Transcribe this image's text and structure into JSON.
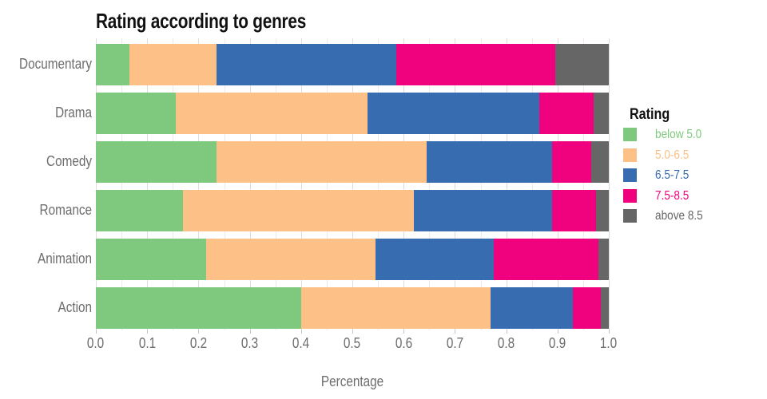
{
  "title": "Rating according to genres",
  "x_axis_label": "Percentage",
  "legend": {
    "title": "Rating",
    "items": [
      {
        "label": "below 5.0",
        "color": "#7fc97f"
      },
      {
        "label": "5.0-6.5",
        "color": "#fdc086"
      },
      {
        "label": "6.5-7.5",
        "color": "#386cb0"
      },
      {
        "label": "7.5-8.5",
        "color": "#f0027f"
      },
      {
        "label": "above 8.5",
        "color": "#666666"
      }
    ]
  },
  "chart_data": {
    "type": "bar",
    "orientation": "horizontal",
    "stacked": true,
    "normalized": true,
    "title": "Rating according to genres",
    "xlabel": "Percentage",
    "ylabel": "",
    "xlim": [
      0.0,
      1.0
    ],
    "x_ticks": [
      "0.0",
      "0.1",
      "0.2",
      "0.3",
      "0.4",
      "0.5",
      "0.6",
      "0.7",
      "0.8",
      "0.9",
      "1.0"
    ],
    "grid": "vertical, minor every 0.05",
    "legend_position": "right",
    "legend_title": "Rating",
    "categories": [
      "Documentary",
      "Drama",
      "Comedy",
      "Romance",
      "Animation",
      "Action"
    ],
    "series": [
      {
        "name": "below 5.0",
        "color": "#7fc97f",
        "values": [
          0.065,
          0.155,
          0.235,
          0.17,
          0.215,
          0.4
        ]
      },
      {
        "name": "5.0-6.5",
        "color": "#fdc086",
        "values": [
          0.17,
          0.375,
          0.41,
          0.45,
          0.33,
          0.37
        ]
      },
      {
        "name": "6.5-7.5",
        "color": "#386cb0",
        "values": [
          0.35,
          0.335,
          0.245,
          0.27,
          0.23,
          0.16
        ]
      },
      {
        "name": "7.5-8.5",
        "color": "#f0027f",
        "values": [
          0.31,
          0.105,
          0.075,
          0.085,
          0.205,
          0.055
        ]
      },
      {
        "name": "above 8.5",
        "color": "#666666",
        "values": [
          0.105,
          0.03,
          0.035,
          0.025,
          0.02,
          0.015
        ]
      }
    ]
  },
  "colors": {
    "text_muted": "#6d6d6d",
    "title_text": "#111111",
    "grid_major": "#e5dada",
    "grid_minor": "#f6e7e7"
  }
}
